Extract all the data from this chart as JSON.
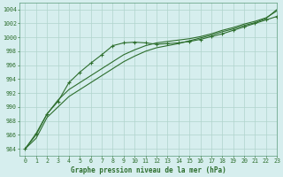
{
  "xlabel": "Graphe pression niveau de la mer (hPa)",
  "xlim": [
    -0.5,
    23
  ],
  "ylim": [
    983,
    1005
  ],
  "yticks": [
    984,
    986,
    988,
    990,
    992,
    994,
    996,
    998,
    1000,
    1002,
    1004
  ],
  "xticks": [
    0,
    1,
    2,
    3,
    4,
    5,
    6,
    7,
    8,
    9,
    10,
    11,
    12,
    13,
    14,
    15,
    16,
    17,
    18,
    19,
    20,
    21,
    22,
    23
  ],
  "bg_color": "#d6eeee",
  "grid_color": "#b0d4cc",
  "line_color": "#2d6e2d",
  "line_dot_color": "#2d6e2d",
  "line1_markers": [
    984.0,
    986.2,
    989.0,
    990.8,
    993.5,
    995.0,
    996.3,
    997.5,
    998.8,
    999.2,
    999.3,
    999.2,
    999.0,
    999.1,
    999.2,
    999.4,
    999.7,
    1000.1,
    1000.5,
    1001.0,
    1001.5,
    1002.0,
    1002.5,
    1003.0
  ],
  "line2_smooth": [
    984.0,
    986.0,
    989.0,
    991.0,
    992.5,
    993.5,
    994.5,
    995.5,
    996.5,
    997.5,
    998.2,
    998.8,
    999.2,
    999.4,
    999.6,
    999.8,
    1000.1,
    1000.5,
    1001.0,
    1001.4,
    1001.9,
    1002.3,
    1002.8,
    1003.8
  ],
  "line3_smooth": [
    984.0,
    985.5,
    988.5,
    990.0,
    991.5,
    992.5,
    993.5,
    994.5,
    995.5,
    996.5,
    997.3,
    998.0,
    998.5,
    998.8,
    999.1,
    999.5,
    999.9,
    1000.3,
    1000.8,
    1001.2,
    1001.7,
    1002.1,
    1002.7,
    1004.0
  ]
}
